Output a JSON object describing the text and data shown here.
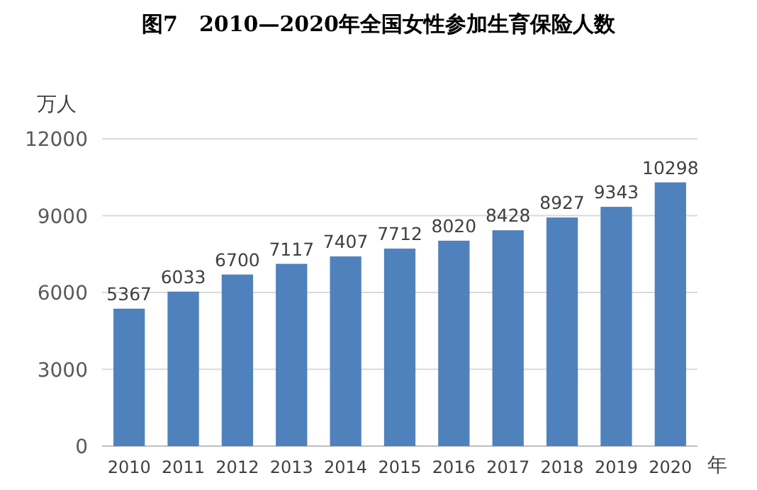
{
  "chart_data": {
    "type": "bar",
    "title": "图7　2010—2020年全国女性参加生育保险人数",
    "ylabel": "万人",
    "xlabel": "年",
    "categories": [
      "2010",
      "2011",
      "2012",
      "2013",
      "2014",
      "2015",
      "2016",
      "2017",
      "2018",
      "2019",
      "2020"
    ],
    "values": [
      5367,
      6033,
      6700,
      7117,
      7407,
      7712,
      8020,
      8428,
      8927,
      9343,
      10298
    ],
    "color": "#4f81bd",
    "ylim": [
      0,
      12000
    ],
    "yticks": [
      0,
      3000,
      6000,
      9000,
      12000
    ],
    "grid": "y",
    "data_labels": true
  }
}
